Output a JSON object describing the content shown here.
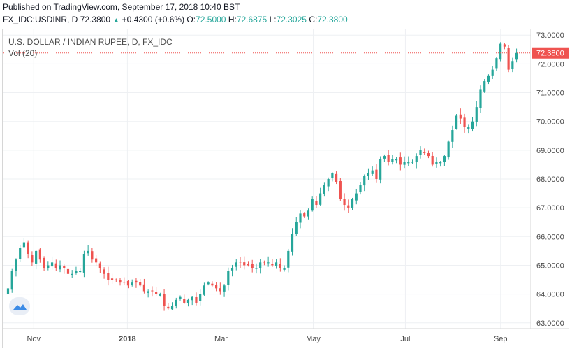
{
  "header": {
    "published": "Published on TradingView.com, September 17, 2018 10:40 BST",
    "symbol": "FX_IDC:USDINR, D",
    "last": "72.3800",
    "change": "+0.4300 (+0.6%)",
    "o_label": "O:",
    "o_value": "72.5000",
    "h_label": "H:",
    "h_value": "72.6875",
    "l_label": "L:",
    "l_value": "72.3025",
    "c_label": "C:",
    "c_value": "72.3800"
  },
  "colors": {
    "up": "#26a69a",
    "down": "#ef5350",
    "grid": "#eef0f3",
    "last_line": "#ef5350"
  },
  "chart_data": {
    "type": "candlestick",
    "title": "U.S. DOLLAR / INDIAN RUPEE, D, FX_IDC",
    "volume_label": "Vol (20)",
    "ylim": [
      62.8,
      73.2
    ],
    "y_ticks": [
      "63.0000",
      "64.0000",
      "65.0000",
      "66.0000",
      "67.0000",
      "68.0000",
      "69.0000",
      "70.0000",
      "71.0000",
      "72.0000",
      "73.0000"
    ],
    "x_ticks": [
      "Nov",
      "2018",
      "Mar",
      "May",
      "Jul",
      "Sep"
    ],
    "x_tick_positions": [
      20,
      82,
      144,
      205,
      266,
      329
    ],
    "x_range": [
      0,
      349
    ],
    "last_price": 72.38,
    "last_price_label": "72.3800",
    "closes": [
      64.2,
      64.8,
      65.2,
      65.6,
      65.8,
      65.4,
      65.1,
      65.5,
      65.2,
      64.9,
      65,
      65.1,
      64.9,
      65,
      64.9,
      64.7,
      64.7,
      64.8,
      64.8,
      65.4,
      65.5,
      65.2,
      65.1,
      64.9,
      64.7,
      64.5,
      64.5,
      64.5,
      64.4,
      64.4,
      64.3,
      64.4,
      64.4,
      64.3,
      64.1,
      64.1,
      64.1,
      64,
      64,
      63.6,
      63.5,
      63.6,
      63.8,
      63.9,
      63.7,
      63.8,
      63.9,
      63.7,
      64,
      64.3,
      64.4,
      64.3,
      64.2,
      64.1,
      64.3,
      64.8,
      64.9,
      65.1,
      65.1,
      65,
      65,
      64.9,
      64.9,
      65.1,
      65.1,
      65.1,
      65,
      65.1,
      64.9,
      64.9,
      65.5,
      66.1,
      66.5,
      66.8,
      66.7,
      66.9,
      67.3,
      67.1,
      67.5,
      67.8,
      68,
      68.2,
      67.9,
      67.3,
      67.1,
      67,
      67.3,
      67.5,
      67.8,
      68.1,
      68.2,
      68.3,
      68,
      68.7,
      68.8,
      68.6,
      68.7,
      68.7,
      68.5,
      68.6,
      68.6,
      68.6,
      68.8,
      69,
      68.9,
      68.8,
      68.5,
      68.6,
      68.6,
      68.8,
      69.3,
      69.7,
      70.2,
      70.1,
      69.8,
      69.8,
      70,
      70.5,
      71.1,
      71.4,
      71.6,
      71.8,
      72.2,
      72.7,
      72.6,
      71.8,
      72.1,
      72.38
    ]
  }
}
